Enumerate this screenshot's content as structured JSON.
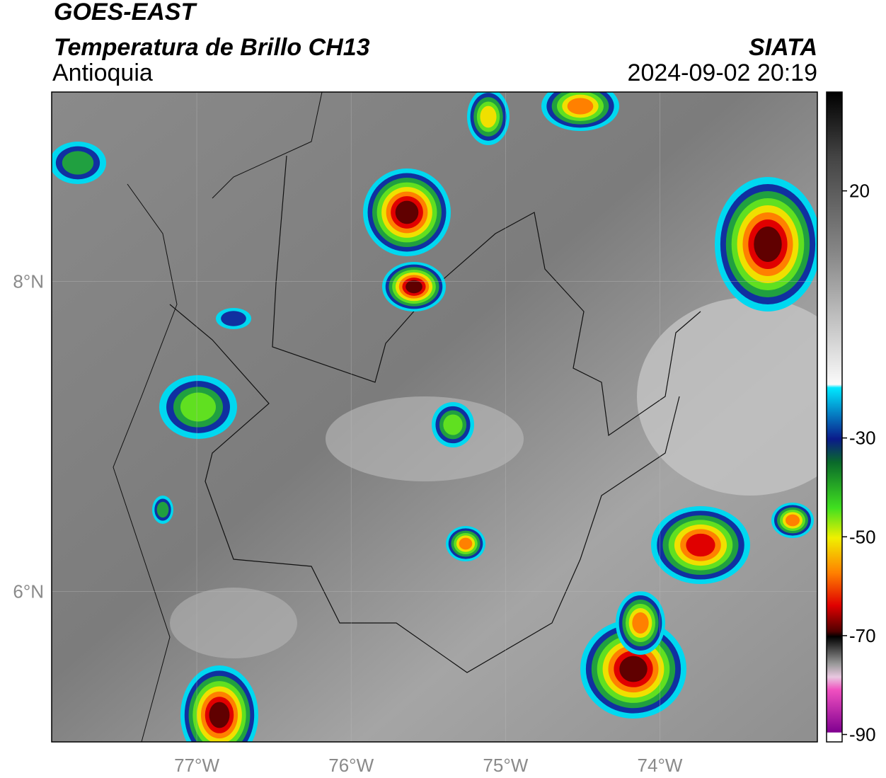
{
  "header": {
    "title": "GOES-EAST",
    "subtitle": "Temperatura de Brillo CH13",
    "region": "Antioquia",
    "source": "SIATA",
    "datetime": "2024-09-02 20:19"
  },
  "map": {
    "lonlim": [
      -77.94,
      -72.98
    ],
    "latlim": [
      5.03,
      9.22
    ],
    "lon_ticks": [
      {
        "value": -77,
        "label": "77°W"
      },
      {
        "value": -76,
        "label": "76°W"
      },
      {
        "value": -75,
        "label": "75°W"
      },
      {
        "value": -74,
        "label": "74°W"
      }
    ],
    "lat_ticks": [
      {
        "value": 8,
        "label": "8°N"
      },
      {
        "value": 6,
        "label": "6°N"
      }
    ]
  },
  "colorbar": {
    "lim": [
      -91.5,
      40
    ],
    "ticks": [
      20,
      -30,
      -50,
      -70,
      -90
    ]
  }
}
